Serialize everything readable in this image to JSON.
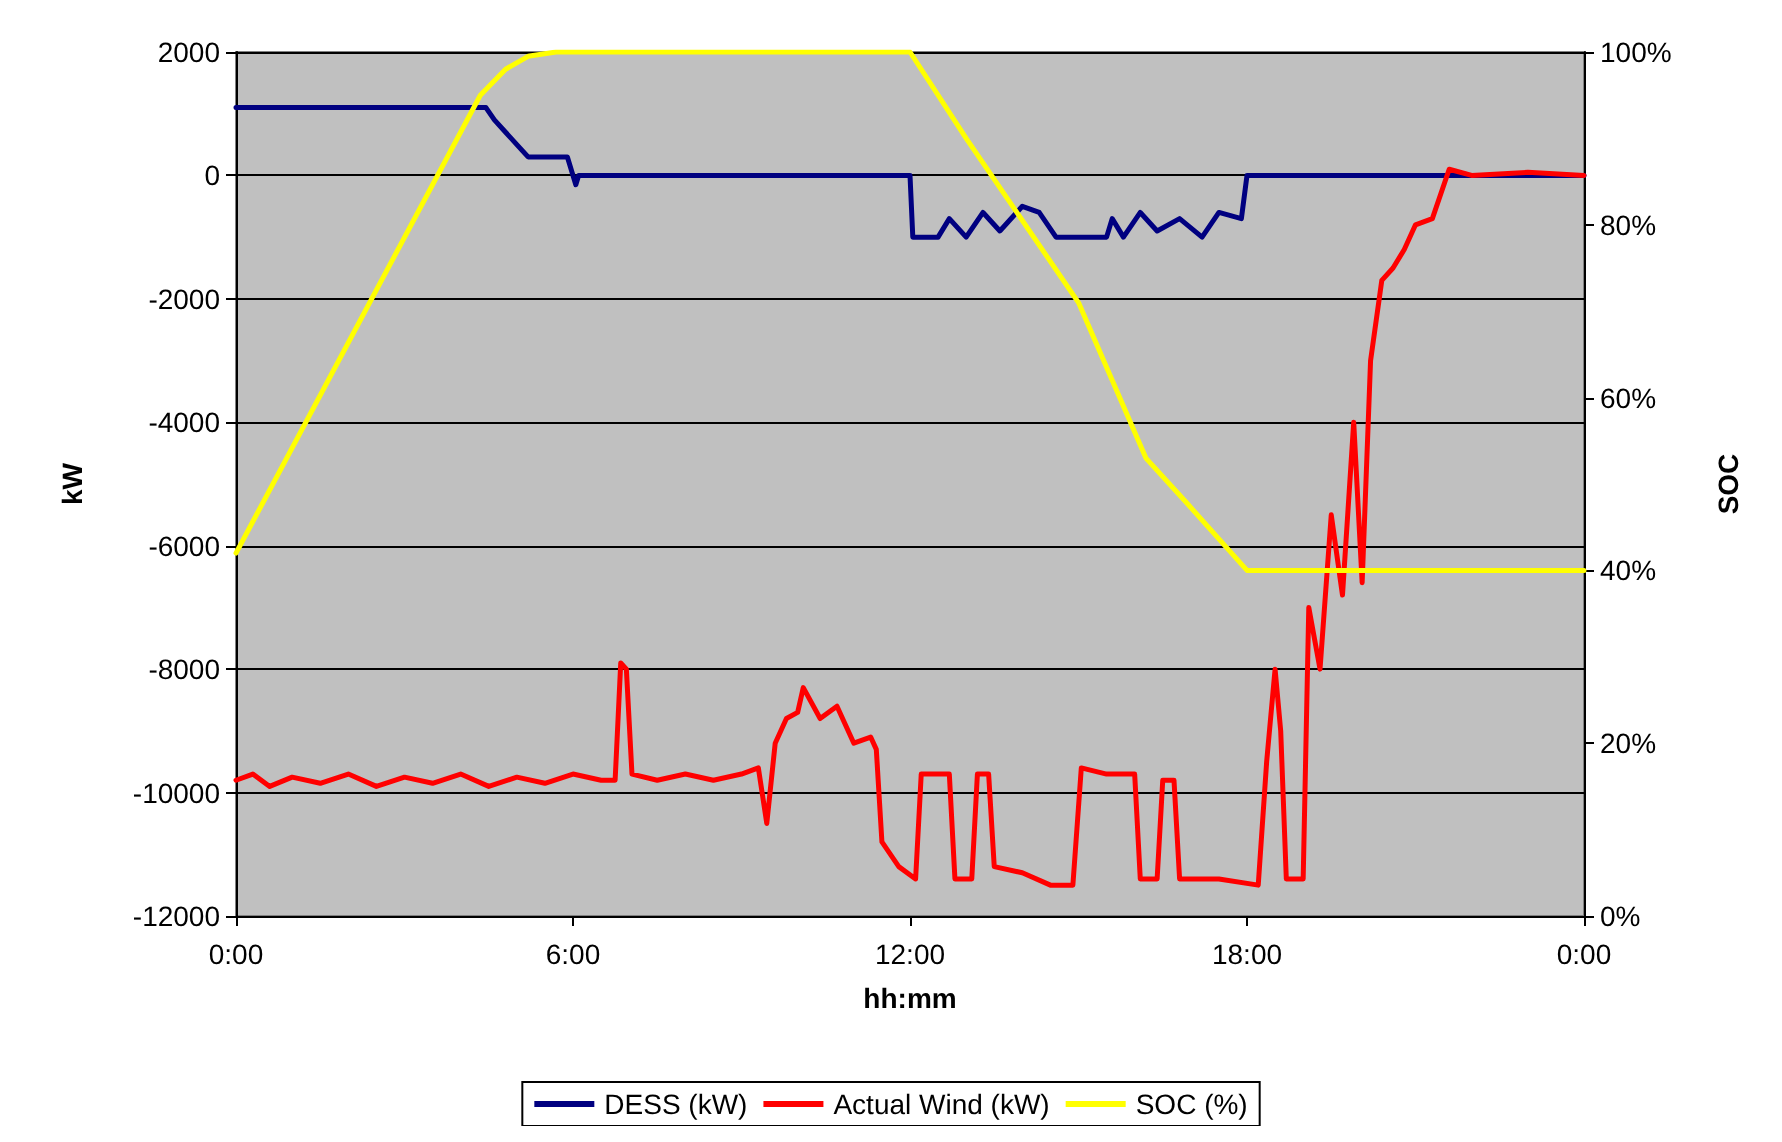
{
  "chart_data": {
    "type": "line",
    "xlabel": "hh:mm",
    "ylabel": "kW",
    "y2label": "SOC",
    "xlim": [
      0,
      24
    ],
    "xticks": [
      {
        "value": 0,
        "label": "0:00"
      },
      {
        "value": 6,
        "label": "6:00"
      },
      {
        "value": 12,
        "label": "12:00"
      },
      {
        "value": 18,
        "label": "18:00"
      },
      {
        "value": 24,
        "label": "0:00"
      }
    ],
    "ylim": [
      -12000,
      2000
    ],
    "yticks": [
      -12000,
      -10000,
      -8000,
      -6000,
      -4000,
      -2000,
      0,
      2000
    ],
    "y2lim": [
      0,
      100
    ],
    "y2ticks": [
      {
        "value": 0,
        "label": "0%"
      },
      {
        "value": 20,
        "label": "20%"
      },
      {
        "value": 40,
        "label": "40%"
      },
      {
        "value": 60,
        "label": "60%"
      },
      {
        "value": 80,
        "label": "80%"
      },
      {
        "value": 100,
        "label": "100%"
      }
    ],
    "grid": "y",
    "legend": "bottom",
    "marker": "none",
    "line_style": "solid",
    "series": [
      {
        "name": "DESS (kW)",
        "color": "#000080",
        "x": [
          0,
          4.45,
          4.6,
          4.8,
          5.0,
          5.2,
          5.9,
          6.0,
          6.05,
          6.1,
          12.0,
          12.05,
          12.5,
          12.7,
          13.0,
          13.3,
          13.6,
          14.0,
          14.3,
          14.6,
          15.5,
          15.6,
          15.8,
          16.1,
          16.4,
          16.8,
          17.2,
          17.5,
          17.9,
          18.0,
          24
        ],
        "values": [
          1100,
          1100,
          900,
          700,
          500,
          300,
          300,
          0,
          -150,
          0,
          0,
          -1000,
          -1000,
          -700,
          -1000,
          -600,
          -900,
          -500,
          -600,
          -1000,
          -1000,
          -700,
          -1000,
          -600,
          -900,
          -700,
          -1000,
          -600,
          -700,
          0,
          0
        ]
      },
      {
        "name": "Actual Wind (kW)",
        "color": "#ff0000",
        "x": [
          0,
          0.3,
          0.6,
          1,
          1.5,
          2,
          2.5,
          3,
          3.5,
          4,
          4.5,
          5,
          5.5,
          6,
          6.5,
          6.75,
          6.85,
          6.95,
          7.05,
          7.5,
          8,
          8.5,
          9,
          9.3,
          9.45,
          9.6,
          9.8,
          10,
          10.1,
          10.4,
          10.7,
          11,
          11.3,
          11.4,
          11.5,
          11.8,
          12.1,
          12.2,
          12.7,
          12.8,
          13.1,
          13.2,
          13.4,
          13.5,
          14,
          14.5,
          14.9,
          15.05,
          15.5,
          16,
          16.1,
          16.4,
          16.5,
          16.7,
          16.8,
          17.5,
          18.2,
          18.35,
          18.5,
          18.6,
          18.7,
          19.0,
          19.1,
          19.3,
          19.5,
          19.7,
          19.9,
          20.05,
          20.2,
          20.4,
          20.6,
          20.8,
          21.0,
          21.3,
          21.6,
          22,
          23,
          24
        ],
        "values": [
          -9800,
          -9700,
          -9900,
          -9750,
          -9850,
          -9700,
          -9900,
          -9750,
          -9850,
          -9700,
          -9900,
          -9750,
          -9850,
          -9700,
          -9800,
          -9800,
          -7900,
          -8000,
          -9700,
          -9800,
          -9700,
          -9800,
          -9700,
          -9600,
          -10500,
          -9200,
          -8800,
          -8700,
          -8300,
          -8800,
          -8600,
          -9200,
          -9100,
          -9300,
          -10800,
          -11200,
          -11400,
          -9700,
          -9700,
          -11400,
          -11400,
          -9700,
          -9700,
          -11200,
          -11300,
          -11500,
          -11500,
          -9600,
          -9700,
          -9700,
          -11400,
          -11400,
          -9800,
          -9800,
          -11400,
          -11400,
          -11500,
          -9500,
          -8000,
          -9000,
          -11400,
          -11400,
          -7000,
          -8000,
          -5500,
          -6800,
          -4000,
          -6600,
          -3000,
          -1700,
          -1500,
          -1200,
          -800,
          -700,
          100,
          0,
          50,
          0
        ]
      },
      {
        "name": "SOC (%)",
        "color": "#ffff00",
        "axis": "y2",
        "x": [
          0,
          4.35,
          4.8,
          5.2,
          5.7,
          12.0,
          13.0,
          15.0,
          16.2,
          16.9,
          18.0,
          24
        ],
        "values": [
          42,
          95,
          98,
          99.5,
          100,
          100,
          90,
          71,
          53,
          48,
          40,
          40
        ]
      }
    ]
  }
}
